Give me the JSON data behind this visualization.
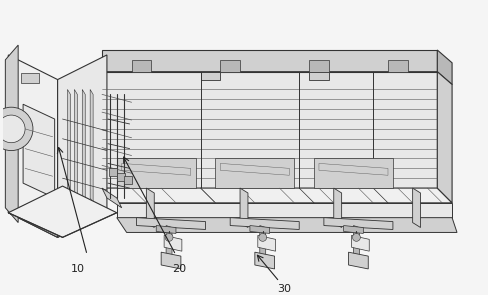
{
  "figure_width": 4.88,
  "figure_height": 2.95,
  "dpi": 100,
  "bg_color": "#f5f5f5",
  "lc": "#333333",
  "lc2": "#555555",
  "fc_light": "#e8e8e8",
  "fc_mid": "#d0d0d0",
  "fc_dark": "#b8b8b8",
  "fc_white": "#f0f0f0",
  "label_10": "10",
  "label_20": "20",
  "label_30": "30"
}
